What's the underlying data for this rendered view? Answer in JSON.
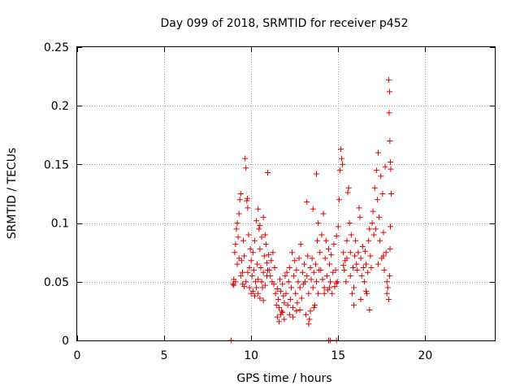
{
  "chart_data": {
    "type": "scatter",
    "title": "Day 099 of 2018, SRMTID for receiver p452",
    "xlabel": "GPS time / hours",
    "ylabel": "SRMTID / TECUs",
    "xlim": [
      0,
      24
    ],
    "ylim": [
      0,
      0.25
    ],
    "xticks": [
      0,
      5,
      10,
      15,
      20
    ],
    "yticks": [
      0,
      0.05,
      0.1,
      0.15,
      0.2,
      0.25
    ],
    "xtick_labels": [
      "0",
      "5",
      "10",
      "15",
      "20"
    ],
    "ytick_labels": [
      "0",
      "0.05",
      "0.1",
      "0.15",
      "0.2",
      "0.25"
    ],
    "grid": true,
    "marker": "+",
    "color": "#e00000",
    "series": [
      {
        "name": "SRMTID",
        "points": [
          [
            8.85,
            0.0
          ],
          [
            14.45,
            0.0
          ],
          [
            14.55,
            0.0
          ],
          [
            14.9,
            0.0
          ],
          [
            8.95,
            0.048
          ],
          [
            9.0,
            0.052
          ],
          [
            9.05,
            0.075
          ],
          [
            9.1,
            0.082
          ],
          [
            9.15,
            0.095
          ],
          [
            9.2,
            0.1
          ],
          [
            9.25,
            0.088
          ],
          [
            9.3,
            0.108
          ],
          [
            9.35,
            0.12
          ],
          [
            9.4,
            0.125
          ],
          [
            9.45,
            0.068
          ],
          [
            9.5,
            0.058
          ],
          [
            9.55,
            0.085
          ],
          [
            9.6,
            0.072
          ],
          [
            9.65,
            0.155
          ],
          [
            9.7,
            0.147
          ],
          [
            9.75,
            0.119
          ],
          [
            9.78,
            0.121
          ],
          [
            9.8,
            0.113
          ],
          [
            9.85,
            0.09
          ],
          [
            9.9,
            0.062
          ],
          [
            9.95,
            0.078
          ],
          [
            9.0,
            0.047
          ],
          [
            9.1,
            0.05
          ],
          [
            9.2,
            0.065
          ],
          [
            9.3,
            0.07
          ],
          [
            9.4,
            0.055
          ],
          [
            9.5,
            0.048
          ],
          [
            9.6,
            0.046
          ],
          [
            9.7,
            0.05
          ],
          [
            9.8,
            0.058
          ],
          [
            9.9,
            0.045
          ],
          [
            10.0,
            0.068
          ],
          [
            10.05,
            0.055
          ],
          [
            10.1,
            0.075
          ],
          [
            10.15,
            0.06
          ],
          [
            10.2,
            0.085
          ],
          [
            10.25,
            0.05
          ],
          [
            10.3,
            0.102
          ],
          [
            10.35,
            0.065
          ],
          [
            10.4,
            0.052
          ],
          [
            10.45,
            0.095
          ],
          [
            10.5,
            0.078
          ],
          [
            10.55,
            0.062
          ],
          [
            10.6,
            0.088
          ],
          [
            10.65,
            0.045
          ],
          [
            10.7,
            0.058
          ],
          [
            10.75,
            0.072
          ],
          [
            10.8,
            0.09
          ],
          [
            10.85,
            0.082
          ],
          [
            10.9,
            0.066
          ],
          [
            10.95,
            0.06
          ],
          [
            10.0,
            0.04
          ],
          [
            10.1,
            0.042
          ],
          [
            10.2,
            0.038
          ],
          [
            10.3,
            0.045
          ],
          [
            10.4,
            0.04
          ],
          [
            10.5,
            0.036
          ],
          [
            10.6,
            0.05
          ],
          [
            10.7,
            0.034
          ],
          [
            10.8,
            0.047
          ],
          [
            10.9,
            0.055
          ],
          [
            10.4,
            0.112
          ],
          [
            10.5,
            0.098
          ],
          [
            10.7,
            0.105
          ],
          [
            10.95,
            0.143
          ],
          [
            11.0,
            0.073
          ],
          [
            11.05,
            0.06
          ],
          [
            11.1,
            0.055
          ],
          [
            11.15,
            0.068
          ],
          [
            11.2,
            0.05
          ],
          [
            11.25,
            0.075
          ],
          [
            11.3,
            0.048
          ],
          [
            11.35,
            0.062
          ],
          [
            11.4,
            0.04
          ],
          [
            11.45,
            0.03
          ],
          [
            11.5,
            0.044
          ],
          [
            11.55,
            0.035
          ],
          [
            11.6,
            0.028
          ],
          [
            11.65,
            0.052
          ],
          [
            11.7,
            0.042
          ],
          [
            11.75,
            0.025
          ],
          [
            11.8,
            0.048
          ],
          [
            11.85,
            0.038
          ],
          [
            11.9,
            0.032
          ],
          [
            11.95,
            0.055
          ],
          [
            11.5,
            0.02
          ],
          [
            11.6,
            0.016
          ],
          [
            11.7,
            0.022
          ],
          [
            11.8,
            0.024
          ],
          [
            11.9,
            0.018
          ],
          [
            12.0,
            0.04
          ],
          [
            12.05,
            0.058
          ],
          [
            12.1,
            0.03
          ],
          [
            12.15,
            0.05
          ],
          [
            12.2,
            0.062
          ],
          [
            12.25,
            0.035
          ],
          [
            12.3,
            0.045
          ],
          [
            12.35,
            0.075
          ],
          [
            12.4,
            0.028
          ],
          [
            12.45,
            0.055
          ],
          [
            12.5,
            0.068
          ],
          [
            12.55,
            0.04
          ],
          [
            12.6,
            0.06
          ],
          [
            12.65,
            0.032
          ],
          [
            12.7,
            0.05
          ],
          [
            12.75,
            0.07
          ],
          [
            12.8,
            0.045
          ],
          [
            12.85,
            0.082
          ],
          [
            12.9,
            0.036
          ],
          [
            12.95,
            0.058
          ],
          [
            12.2,
            0.022
          ],
          [
            12.4,
            0.02
          ],
          [
            12.6,
            0.025
          ],
          [
            12.8,
            0.026
          ],
          [
            13.0,
            0.048
          ],
          [
            13.05,
            0.065
          ],
          [
            13.1,
            0.05
          ],
          [
            13.15,
            0.022
          ],
          [
            13.2,
            0.055
          ],
          [
            13.25,
            0.072
          ],
          [
            13.3,
            0.04
          ],
          [
            13.35,
            0.018
          ],
          [
            13.4,
            0.062
          ],
          [
            13.45,
            0.052
          ],
          [
            13.5,
            0.07
          ],
          [
            13.55,
            0.045
          ],
          [
            13.6,
            0.058
          ],
          [
            13.65,
            0.03
          ],
          [
            13.7,
            0.065
          ],
          [
            13.75,
            0.05
          ],
          [
            13.8,
            0.085
          ],
          [
            13.85,
            0.04
          ],
          [
            13.9,
            0.06
          ],
          [
            13.95,
            0.075
          ],
          [
            13.4,
            0.025
          ],
          [
            13.6,
            0.028
          ],
          [
            13.3,
            0.014
          ],
          [
            13.2,
            0.118
          ],
          [
            13.55,
            0.112
          ],
          [
            13.75,
            0.142
          ],
          [
            13.85,
            0.1
          ],
          [
            14.0,
            0.06
          ],
          [
            14.05,
            0.09
          ],
          [
            14.1,
            0.052
          ],
          [
            14.15,
            0.108
          ],
          [
            14.2,
            0.045
          ],
          [
            14.25,
            0.07
          ],
          [
            14.3,
            0.085
          ],
          [
            14.35,
            0.055
          ],
          [
            14.4,
            0.043
          ],
          [
            14.45,
            0.078
          ],
          [
            14.5,
            0.065
          ],
          [
            14.55,
            0.05
          ],
          [
            14.6,
            0.073
          ],
          [
            14.65,
            0.04
          ],
          [
            14.7,
            0.058
          ],
          [
            14.75,
            0.082
          ],
          [
            14.8,
            0.046
          ],
          [
            14.85,
            0.06
          ],
          [
            14.9,
            0.089
          ],
          [
            14.95,
            0.05
          ],
          [
            14.2,
            0.04
          ],
          [
            14.5,
            0.045
          ],
          [
            14.8,
            0.046
          ],
          [
            14.9,
            0.049
          ],
          [
            15.0,
            0.097
          ],
          [
            15.05,
            0.12
          ],
          [
            15.1,
            0.145
          ],
          [
            15.15,
            0.163
          ],
          [
            15.2,
            0.155
          ],
          [
            15.25,
            0.15
          ],
          [
            15.3,
            0.075
          ],
          [
            15.35,
            0.06
          ],
          [
            15.4,
            0.068
          ],
          [
            15.45,
            0.05
          ],
          [
            15.5,
            0.085
          ],
          [
            15.55,
            0.126
          ],
          [
            15.6,
            0.13
          ],
          [
            15.65,
            0.1
          ],
          [
            15.7,
            0.075
          ],
          [
            15.75,
            0.09
          ],
          [
            15.8,
            0.04
          ],
          [
            15.85,
            0.062
          ],
          [
            15.9,
            0.03
          ],
          [
            15.95,
            0.072
          ],
          [
            15.3,
            0.064
          ],
          [
            15.5,
            0.07
          ],
          [
            15.7,
            0.055
          ],
          [
            15.9,
            0.045
          ],
          [
            16.0,
            0.085
          ],
          [
            16.05,
            0.065
          ],
          [
            16.1,
            0.06
          ],
          [
            16.15,
            0.075
          ],
          [
            16.2,
            0.113
          ],
          [
            16.25,
            0.105
          ],
          [
            16.3,
            0.07
          ],
          [
            16.35,
            0.055
          ],
          [
            16.4,
            0.08
          ],
          [
            16.45,
            0.062
          ],
          [
            16.5,
            0.05
          ],
          [
            16.55,
            0.076
          ],
          [
            16.6,
            0.065
          ],
          [
            16.65,
            0.04
          ],
          [
            16.7,
            0.058
          ],
          [
            16.75,
            0.085
          ],
          [
            16.8,
            0.095
          ],
          [
            16.85,
            0.072
          ],
          [
            16.9,
            0.062
          ],
          [
            16.95,
            0.1
          ],
          [
            16.3,
            0.035
          ],
          [
            16.6,
            0.042
          ],
          [
            16.8,
            0.026
          ],
          [
            17.0,
            0.11
          ],
          [
            17.05,
            0.09
          ],
          [
            17.1,
            0.13
          ],
          [
            17.15,
            0.095
          ],
          [
            17.2,
            0.145
          ],
          [
            17.25,
            0.12
          ],
          [
            17.3,
            0.16
          ],
          [
            17.35,
            0.105
          ],
          [
            17.4,
            0.085
          ],
          [
            17.45,
            0.14
          ],
          [
            17.5,
            0.07
          ],
          [
            17.55,
            0.125
          ],
          [
            17.6,
            0.092
          ],
          [
            17.65,
            0.06
          ],
          [
            17.7,
            0.148
          ],
          [
            17.75,
            0.075
          ],
          [
            17.8,
            0.05
          ],
          [
            17.85,
            0.045
          ],
          [
            17.9,
            0.035
          ],
          [
            17.95,
            0.055
          ],
          [
            17.3,
            0.065
          ],
          [
            17.6,
            0.072
          ],
          [
            17.8,
            0.04
          ],
          [
            17.9,
            0.222
          ],
          [
            17.95,
            0.212
          ],
          [
            17.93,
            0.194
          ],
          [
            17.97,
            0.17
          ],
          [
            18.0,
            0.152
          ],
          [
            18.02,
            0.146
          ],
          [
            18.05,
            0.125
          ],
          [
            18.0,
            0.097
          ],
          [
            17.98,
            0.078
          ]
        ]
      }
    ]
  }
}
